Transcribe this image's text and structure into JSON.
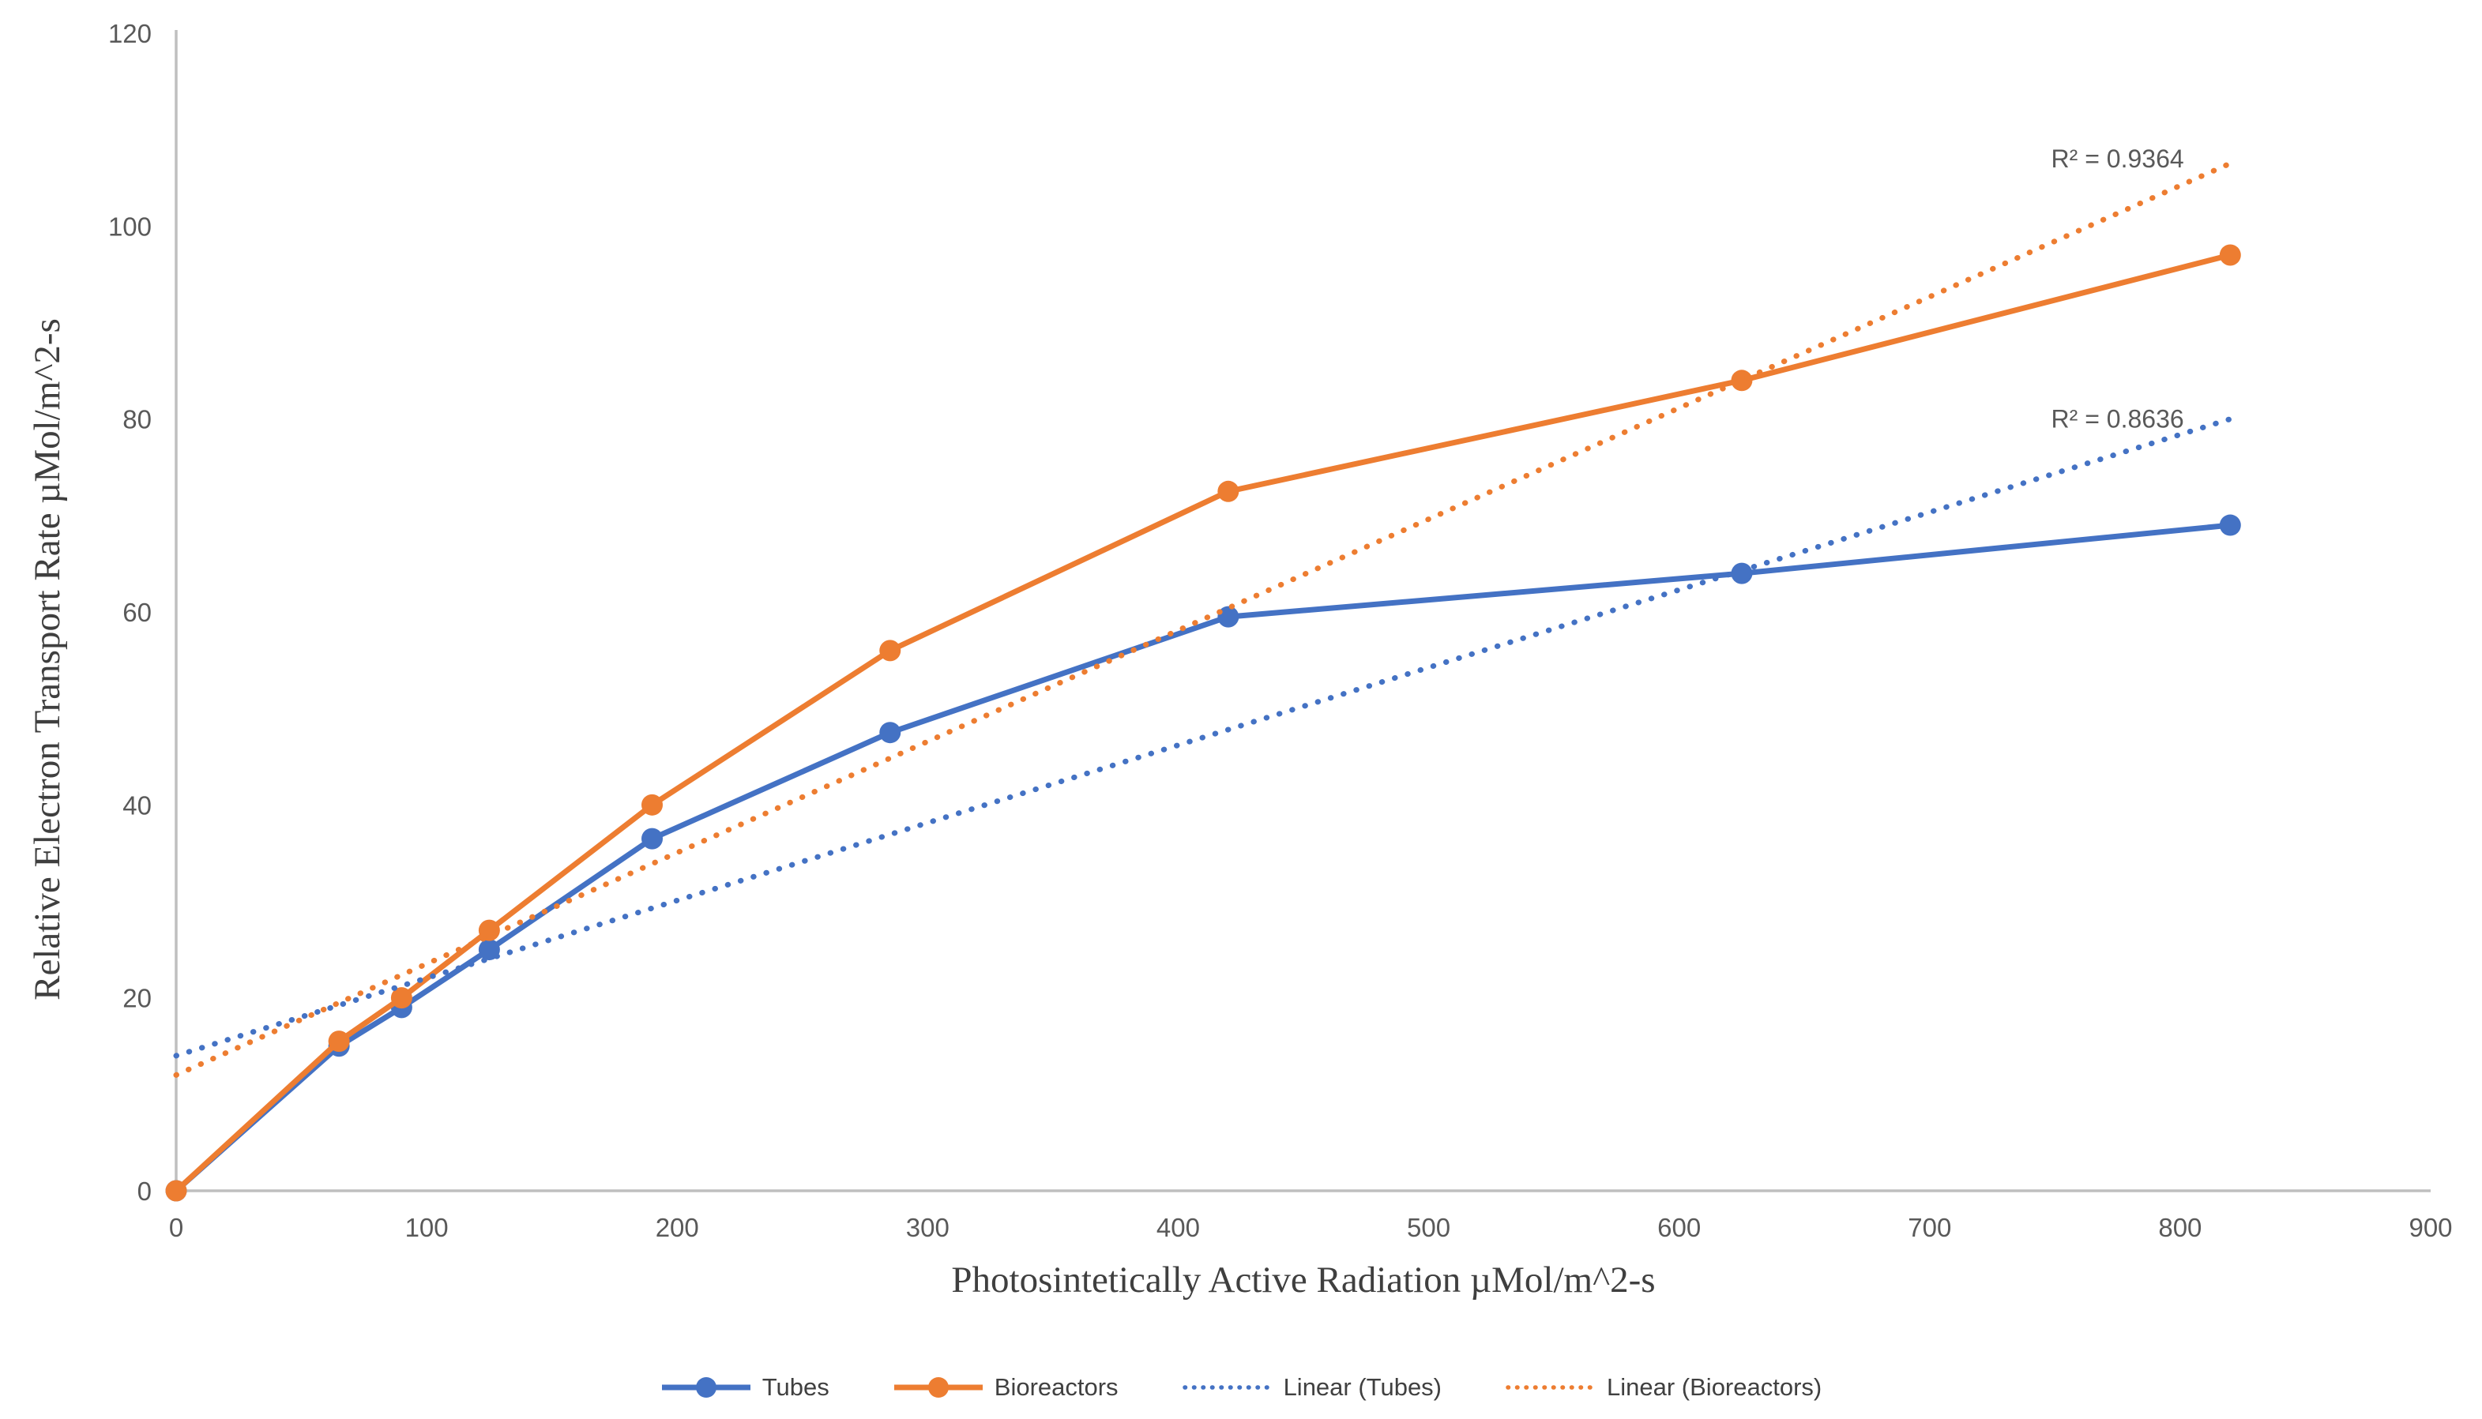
{
  "chart_data": {
    "type": "line",
    "title": "",
    "xlabel": "Photosintetically Active Radiation µMol/m^2-s",
    "ylabel": "Relative Electron Transport Rate  µMol/m^2-s",
    "xlim": [
      0,
      900
    ],
    "ylim": [
      0,
      120
    ],
    "x_ticks": [
      0,
      100,
      200,
      300,
      400,
      500,
      600,
      700,
      800,
      900
    ],
    "y_ticks": [
      0,
      20,
      40,
      60,
      80,
      100,
      120
    ],
    "grid": false,
    "legend_position": "bottom",
    "axis_color": "#BFBFBF",
    "tick_text_color": "#595959",
    "series": [
      {
        "name": "Tubes",
        "color": "#4472C4",
        "style": "solid-markers",
        "points": [
          [
            0,
            0
          ],
          [
            65,
            15
          ],
          [
            90,
            19
          ],
          [
            125,
            25
          ],
          [
            190,
            36.5
          ],
          [
            285,
            47.5
          ],
          [
            420,
            59.5
          ],
          [
            625,
            64
          ],
          [
            820,
            69
          ]
        ]
      },
      {
        "name": "Bioreactors",
        "color": "#ED7D31",
        "style": "solid-markers",
        "points": [
          [
            0,
            0
          ],
          [
            65,
            15.5
          ],
          [
            90,
            20
          ],
          [
            125,
            27
          ],
          [
            190,
            40
          ],
          [
            285,
            56
          ],
          [
            420,
            72.5
          ],
          [
            625,
            84
          ],
          [
            820,
            97
          ]
        ]
      },
      {
        "name": "Linear (Tubes)",
        "color": "#4472C4",
        "style": "dotted",
        "points": [
          [
            0,
            14
          ],
          [
            820,
            80
          ]
        ]
      },
      {
        "name": "Linear (Bioreactors)",
        "color": "#ED7D31",
        "style": "dotted",
        "points": [
          [
            0,
            12
          ],
          [
            820,
            106.5
          ]
        ]
      }
    ],
    "annotations": [
      {
        "text": "R² = 0.9364",
        "x": 775,
        "y": 107,
        "series": "Bioreactors"
      },
      {
        "text": "R² = 0.8636",
        "x": 775,
        "y": 80,
        "series": "Tubes"
      }
    ]
  }
}
